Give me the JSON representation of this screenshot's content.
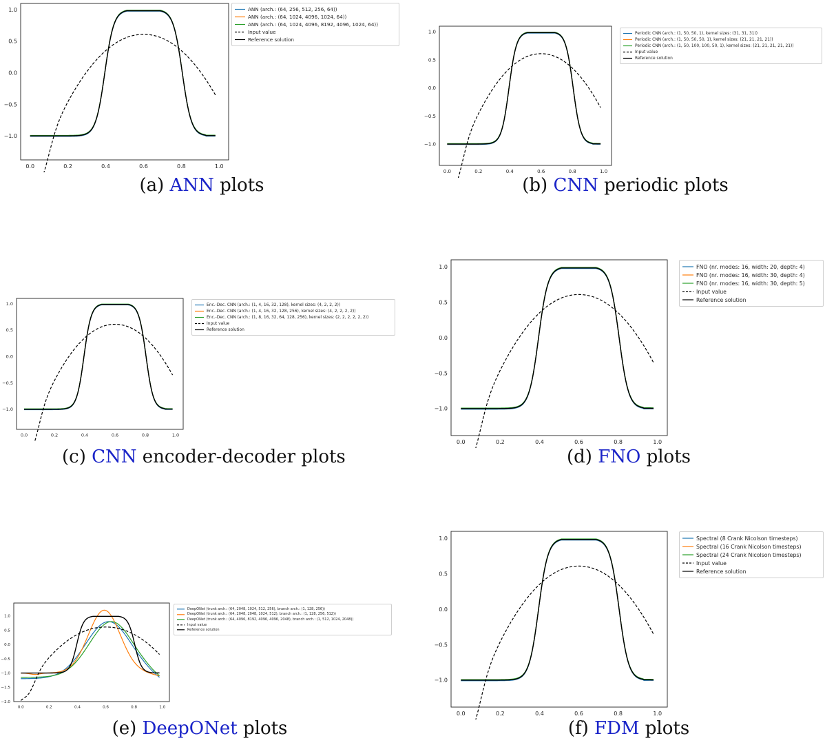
{
  "captions": [
    {
      "label": "(a)",
      "link": "ANN",
      "rest": "plots"
    },
    {
      "label": "(b)",
      "link": "CNN",
      "rest": "periodic plots"
    },
    {
      "label": "(c)",
      "link": "CNN",
      "rest": "encoder-decoder plots"
    },
    {
      "label": "(d)",
      "link": "FNO",
      "rest": "plots"
    },
    {
      "label": "(e)",
      "link": "DeepONet",
      "rest": "plots"
    },
    {
      "label": "(f)",
      "link": "FDM",
      "rest": "plots"
    }
  ],
  "legend_labels": {
    "a": [
      "ANN (arch.: (64, 256, 512, 256, 64))",
      "ANN (arch.: (64, 1024, 4096, 1024, 64))",
      "ANN (arch.: (64, 1024, 4096, 8192, 4096, 1024, 64))",
      "Input value",
      "Reference solution"
    ],
    "b": [
      "Periodic CNN (arch.: (1, 50, 50, 1), kernel sizes: (31, 31, 31))",
      "Periodic CNN (arch.: (1, 50, 50, 50, 1), kernel sizes: (21, 21, 21, 21))",
      "Periodic CNN (arch.: (1, 50, 100, 100, 50, 1), kernel sizes: (21, 21, 21, 21, 21))",
      "Input value",
      "Reference solution"
    ],
    "c": [
      "Enc.-Dec. CNN (arch.: (1, 4, 16, 32, 128), kernel sizes: (4, 2, 2, 2))",
      "Enc.-Dec. CNN (arch.: (1, 4, 16, 32, 128, 256), kernel sizes: (4, 2, 2, 2, 2))",
      "Enc.-Dec. CNN (arch.: (1, 8, 16, 32, 64, 128, 256), kernel sizes: (2, 2, 2, 2, 2, 2))",
      "Input value",
      "Reference solution"
    ],
    "d": [
      "FNO (nr. modes: 16, width: 20, depth: 4)",
      "FNO (nr. modes: 16, width: 30, depth: 4)",
      "FNO (nr. modes: 16, width: 30, depth: 5)",
      "Input value",
      "Reference solution"
    ],
    "e": [
      "DeepONet (trunk arch.: (64, 2048, 1024, 512, 256), branch arch.: (1, 128, 256))",
      "DeepONet (trunk arch.: (64, 2048, 2048, 1024, 512), branch arch.: (1, 128, 256, 512))",
      "DeepONet (trunk arch.: (64, 4096, 8192, 4096, 4096, 2048), branch arch.: (1, 512, 1024, 2048))",
      "Input value",
      "Reference solution"
    ],
    "f": [
      "Spectral (8 Crank Nicolson timesteps)",
      "Spectral (16 Crank Nicolson timesteps)",
      "Spectral (24 Crank Nicolson timesteps)",
      "Input value",
      "Reference solution"
    ]
  },
  "chart_data": [
    {
      "id": "a",
      "type": "line",
      "xlim": [
        -0.05,
        1.05
      ],
      "ylim": [
        -1.38,
        1.1
      ],
      "xticks": [
        "0.0",
        "0.2",
        "0.4",
        "0.6",
        "0.8",
        "1.0"
      ],
      "yticks": [
        "−1.0",
        "−0.5",
        "0.0",
        "0.5",
        "1.0"
      ],
      "grid": false,
      "legend": "outside-right",
      "series": [
        {
          "name": "ANN (arch.: (64, 256, 512, 256, 64))",
          "color": "#1f77b4",
          "style": "solid",
          "kind": "ref"
        },
        {
          "name": "ANN (arch.: (64, 1024, 4096, 1024, 64))",
          "color": "#ff7f0e",
          "style": "solid",
          "kind": "ref"
        },
        {
          "name": "ANN (arch.: (64, 1024, 4096, 8192, 4096, 1024, 64))",
          "color": "#2ca02c",
          "style": "solid",
          "kind": "ref"
        },
        {
          "name": "Input value",
          "color": "#000000",
          "style": "dashed",
          "kind": "input"
        },
        {
          "name": "Reference solution",
          "color": "#000000",
          "style": "solid",
          "kind": "ref"
        }
      ]
    },
    {
      "id": "b",
      "type": "line",
      "xlim": [
        -0.05,
        1.05
      ],
      "ylim": [
        -1.38,
        1.1
      ],
      "xticks": [
        "0.0",
        "0.2",
        "0.4",
        "0.6",
        "0.8",
        "1.0"
      ],
      "yticks": [
        "−1.0",
        "−0.5",
        "0.0",
        "0.5",
        "1.0"
      ],
      "grid": false,
      "legend": "outside-right",
      "series": [
        {
          "name": "Periodic CNN (arch.: (1, 50, 50, 1), kernel sizes: (31, 31, 31))",
          "color": "#1f77b4",
          "style": "solid",
          "kind": "ref"
        },
        {
          "name": "Periodic CNN (arch.: (1, 50, 50, 50, 1), kernel sizes: (21, 21, 21, 21))",
          "color": "#ff7f0e",
          "style": "solid",
          "kind": "ref"
        },
        {
          "name": "Periodic CNN (arch.: (1, 50, 100, 100, 50, 1), kernel sizes: (21, 21, 21, 21, 21))",
          "color": "#2ca02c",
          "style": "solid",
          "kind": "ref"
        },
        {
          "name": "Input value",
          "color": "#000000",
          "style": "dashed",
          "kind": "input"
        },
        {
          "name": "Reference solution",
          "color": "#000000",
          "style": "solid",
          "kind": "ref"
        }
      ]
    },
    {
      "id": "c",
      "type": "line",
      "xlim": [
        -0.05,
        1.05
      ],
      "ylim": [
        -1.38,
        1.1
      ],
      "xticks": [
        "0.0",
        "0.2",
        "0.4",
        "0.6",
        "0.8",
        "1.0"
      ],
      "yticks": [
        "−1.0",
        "−0.5",
        "0.0",
        "0.5",
        "1.0"
      ],
      "grid": false,
      "legend": "outside-right",
      "series": [
        {
          "name": "Enc.-Dec. CNN (arch.: (1, 4, 16, 32, 128), kernel sizes: (4, 2, 2, 2))",
          "color": "#1f77b4",
          "style": "solid",
          "kind": "ref"
        },
        {
          "name": "Enc.-Dec. CNN (arch.: (1, 4, 16, 32, 128, 256), kernel sizes: (4, 2, 2, 2, 2))",
          "color": "#ff7f0e",
          "style": "solid",
          "kind": "ref"
        },
        {
          "name": "Enc.-Dec. CNN (arch.: (1, 8, 16, 32, 64, 128, 256), kernel sizes: (2, 2, 2, 2, 2, 2))",
          "color": "#2ca02c",
          "style": "solid",
          "kind": "ref"
        },
        {
          "name": "Input value",
          "color": "#000000",
          "style": "dashed",
          "kind": "input"
        },
        {
          "name": "Reference solution",
          "color": "#000000",
          "style": "solid",
          "kind": "ref"
        }
      ]
    },
    {
      "id": "d",
      "type": "line",
      "xlim": [
        -0.05,
        1.05
      ],
      "ylim": [
        -1.38,
        1.1
      ],
      "xticks": [
        "0.0",
        "0.2",
        "0.4",
        "0.6",
        "0.8",
        "1.0"
      ],
      "yticks": [
        "−1.0",
        "−0.5",
        "0.0",
        "0.5",
        "1.0"
      ],
      "grid": false,
      "legend": "outside-right",
      "series": [
        {
          "name": "FNO (nr. modes: 16, width: 20, depth: 4)",
          "color": "#1f77b4",
          "style": "solid",
          "kind": "ref"
        },
        {
          "name": "FNO (nr. modes: 16, width: 30, depth: 4)",
          "color": "#ff7f0e",
          "style": "solid",
          "kind": "ref"
        },
        {
          "name": "FNO (nr. modes: 16, width: 30, depth: 5)",
          "color": "#2ca02c",
          "style": "solid",
          "kind": "ref"
        },
        {
          "name": "Input value",
          "color": "#000000",
          "style": "dashed",
          "kind": "input"
        },
        {
          "name": "Reference solution",
          "color": "#000000",
          "style": "solid",
          "kind": "ref"
        }
      ]
    },
    {
      "id": "e",
      "type": "line",
      "xlim": [
        -0.05,
        1.05
      ],
      "ylim": [
        -2.0,
        1.45
      ],
      "xticks": [
        "0.0",
        "0.2",
        "0.4",
        "0.6",
        "0.8",
        "1.0"
      ],
      "yticks": [
        "−2.0",
        "−1.5",
        "−1.0",
        "−0.5",
        "0.0",
        "0.5",
        "1.0"
      ],
      "grid": false,
      "legend": "outside-right",
      "series": [
        {
          "name": "DeepONet (trunk arch.: (64, 2048, 1024, 512, 256), branch arch.: (1, 128, 256))",
          "color": "#1f77b4",
          "style": "solid",
          "kind": "deep1"
        },
        {
          "name": "DeepONet (trunk arch.: (64, 2048, 2048, 1024, 512), branch arch.: (1, 128, 256, 512))",
          "color": "#ff7f0e",
          "style": "solid",
          "kind": "deep2"
        },
        {
          "name": "DeepONet (trunk arch.: (64, 4096, 8192, 4096, 4096, 2048), branch arch.: (1, 512, 1024, 2048))",
          "color": "#2ca02c",
          "style": "solid",
          "kind": "deep3"
        },
        {
          "name": "Input value",
          "color": "#000000",
          "style": "dashed",
          "kind": "input"
        },
        {
          "name": "Reference solution",
          "color": "#000000",
          "style": "solid",
          "kind": "ref"
        }
      ]
    },
    {
      "id": "f",
      "type": "line",
      "xlim": [
        -0.05,
        1.05
      ],
      "ylim": [
        -1.38,
        1.1
      ],
      "xticks": [
        "0.0",
        "0.2",
        "0.4",
        "0.6",
        "0.8",
        "1.0"
      ],
      "yticks": [
        "−1.0",
        "−0.5",
        "0.0",
        "0.5",
        "1.0"
      ],
      "grid": false,
      "legend": "outside-right",
      "series": [
        {
          "name": "Spectral (8 Crank Nicolson timesteps)",
          "color": "#1f77b4",
          "style": "solid",
          "kind": "ref"
        },
        {
          "name": "Spectral (16 Crank Nicolson timesteps)",
          "color": "#ff7f0e",
          "style": "solid",
          "kind": "ref"
        },
        {
          "name": "Spectral (24 Crank Nicolson timesteps)",
          "color": "#2ca02c",
          "style": "solid",
          "kind": "ref"
        },
        {
          "name": "Input value",
          "color": "#000000",
          "style": "dashed",
          "kind": "input"
        },
        {
          "name": "Reference solution",
          "color": "#000000",
          "style": "solid",
          "kind": "ref"
        }
      ]
    }
  ]
}
